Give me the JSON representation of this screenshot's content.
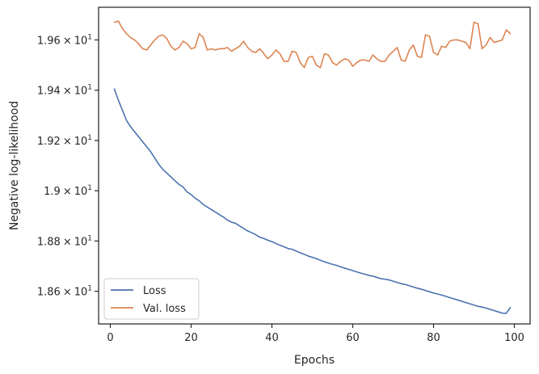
{
  "chart_data": {
    "type": "line",
    "xlabel": "Epochs",
    "ylabel": "Negative log-likelihood",
    "xlim": [
      -2.9,
      103.9
    ],
    "ylim": [
      18.47,
      19.73
    ],
    "x_ticks": [
      0,
      20,
      40,
      60,
      80,
      100
    ],
    "x_tick_labels": [
      "0",
      "20",
      "40",
      "60",
      "80",
      "100"
    ],
    "y_ticks": [
      18.6,
      18.8,
      19.0,
      19.2,
      19.4,
      19.6
    ],
    "y_tick_labels": [
      {
        "mantissa": "1.86",
        "times": "×",
        "base": "10",
        "exp": "1"
      },
      {
        "mantissa": "1.88",
        "times": "×",
        "base": "10",
        "exp": "1"
      },
      {
        "mantissa": "1.9",
        "times": "×",
        "base": "10",
        "exp": "1"
      },
      {
        "mantissa": "1.92",
        "times": "×",
        "base": "10",
        "exp": "1"
      },
      {
        "mantissa": "1.94",
        "times": "×",
        "base": "10",
        "exp": "1"
      },
      {
        "mantissa": "1.96",
        "times": "×",
        "base": "10",
        "exp": "1"
      }
    ],
    "legend": {
      "position": "lower-left"
    },
    "grid": false,
    "series": [
      {
        "name": "Loss",
        "color": "#4c72b0",
        "x": [
          1,
          2,
          3,
          4,
          5,
          6,
          7,
          8,
          9,
          10,
          11,
          12,
          13,
          14,
          15,
          16,
          17,
          18,
          19,
          20,
          21,
          22,
          23,
          24,
          25,
          26,
          27,
          28,
          29,
          30,
          31,
          32,
          33,
          34,
          35,
          36,
          37,
          38,
          39,
          40,
          41,
          42,
          43,
          44,
          45,
          46,
          47,
          48,
          49,
          50,
          51,
          52,
          53,
          54,
          55,
          56,
          57,
          58,
          59,
          60,
          61,
          62,
          63,
          64,
          65,
          66,
          67,
          68,
          69,
          70,
          71,
          72,
          73,
          74,
          75,
          76,
          77,
          78,
          79,
          80,
          81,
          82,
          83,
          84,
          85,
          86,
          87,
          88,
          89,
          90,
          91,
          92,
          93,
          94,
          95,
          96,
          97,
          98,
          99
        ],
        "values": [
          19.405,
          19.36,
          19.32,
          19.28,
          19.255,
          19.235,
          19.215,
          19.195,
          19.175,
          19.155,
          19.13,
          19.105,
          19.085,
          19.07,
          19.055,
          19.04,
          19.025,
          19.015,
          18.995,
          18.985,
          18.97,
          18.96,
          18.945,
          18.935,
          18.925,
          18.915,
          18.905,
          18.895,
          18.883,
          18.875,
          18.87,
          18.86,
          18.85,
          18.84,
          18.833,
          18.825,
          18.815,
          18.81,
          18.803,
          18.797,
          18.79,
          18.783,
          18.777,
          18.77,
          18.767,
          18.76,
          18.753,
          18.747,
          18.74,
          18.735,
          18.73,
          18.723,
          18.717,
          18.712,
          18.707,
          18.703,
          18.697,
          18.692,
          18.687,
          18.682,
          18.677,
          18.672,
          18.668,
          18.663,
          18.66,
          18.655,
          18.65,
          18.648,
          18.645,
          18.64,
          18.635,
          18.63,
          18.627,
          18.622,
          18.617,
          18.612,
          18.608,
          18.603,
          18.598,
          18.593,
          18.589,
          18.585,
          18.58,
          18.575,
          18.57,
          18.565,
          18.56,
          18.555,
          18.55,
          18.545,
          18.54,
          18.537,
          18.533,
          18.528,
          18.523,
          18.518,
          18.513,
          18.512,
          18.535
        ]
      },
      {
        "name": "Val. loss",
        "color": "#dd8452",
        "x": [
          1,
          2,
          3,
          4,
          5,
          6,
          7,
          8,
          9,
          10,
          11,
          12,
          13,
          14,
          15,
          16,
          17,
          18,
          19,
          20,
          21,
          22,
          23,
          24,
          25,
          26,
          27,
          28,
          29,
          30,
          31,
          32,
          33,
          34,
          35,
          36,
          37,
          38,
          39,
          40,
          41,
          42,
          43,
          44,
          45,
          46,
          47,
          48,
          49,
          50,
          51,
          52,
          53,
          54,
          55,
          56,
          57,
          58,
          59,
          60,
          61,
          62,
          63,
          64,
          65,
          66,
          67,
          68,
          69,
          70,
          71,
          72,
          73,
          74,
          75,
          76,
          77,
          78,
          79,
          80,
          81,
          82,
          83,
          84,
          85,
          86,
          87,
          88,
          89,
          90,
          91,
          92,
          93,
          94,
          95,
          96,
          97,
          98,
          99
        ],
        "values": [
          19.67,
          19.675,
          19.645,
          19.625,
          19.61,
          19.6,
          19.585,
          19.565,
          19.56,
          19.58,
          19.6,
          19.615,
          19.62,
          19.605,
          19.575,
          19.56,
          19.57,
          19.595,
          19.585,
          19.565,
          19.57,
          19.625,
          19.61,
          19.56,
          19.565,
          19.56,
          19.565,
          19.565,
          19.57,
          19.555,
          19.565,
          19.575,
          19.595,
          19.57,
          19.555,
          19.55,
          19.565,
          19.545,
          19.525,
          19.54,
          19.56,
          19.545,
          19.515,
          19.515,
          19.555,
          19.55,
          19.51,
          19.49,
          19.53,
          19.535,
          19.5,
          19.49,
          19.545,
          19.54,
          19.51,
          19.5,
          19.515,
          19.525,
          19.52,
          19.495,
          19.51,
          19.52,
          19.52,
          19.515,
          19.54,
          19.525,
          19.515,
          19.515,
          19.54,
          19.555,
          19.57,
          19.52,
          19.515,
          19.56,
          19.58,
          19.535,
          19.53,
          19.62,
          19.615,
          19.55,
          19.54,
          19.575,
          19.57,
          19.595,
          19.6,
          19.6,
          19.595,
          19.59,
          19.565,
          19.67,
          19.665,
          19.565,
          19.58,
          19.61,
          19.59,
          19.595,
          19.6,
          19.64,
          19.625
        ]
      }
    ]
  }
}
